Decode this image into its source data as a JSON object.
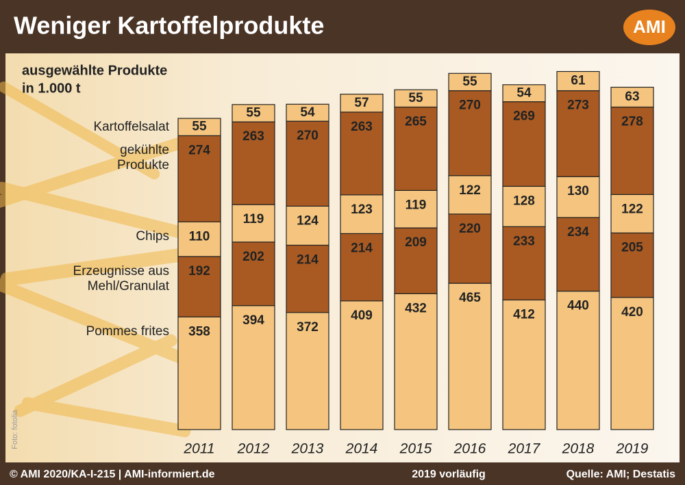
{
  "chart_data": {
    "type": "stacked-bar",
    "title": "Weniger Kartoffelprodukte",
    "subtitle": [
      "ausgewählte Produkte",
      "in 1.000 t"
    ],
    "logo": "AMI",
    "categories": [
      "2011",
      "2012",
      "2013",
      "2014",
      "2015",
      "2016",
      "2017",
      "2018",
      "2019"
    ],
    "series": [
      {
        "name": "Kartoffelsalat",
        "color": "#f5c57f",
        "values": [
          55,
          55,
          54,
          57,
          55,
          55,
          54,
          61,
          63
        ]
      },
      {
        "name": "gekühlte Produkte",
        "color": "#a85a22",
        "values": [
          274,
          263,
          270,
          263,
          265,
          270,
          269,
          273,
          278
        ]
      },
      {
        "name": "Chips",
        "color": "#f5c57f",
        "values": [
          110,
          119,
          124,
          123,
          119,
          122,
          128,
          130,
          122
        ]
      },
      {
        "name": "Erzeugnisse aus Mehl/Granulat",
        "color": "#a85a22",
        "values": [
          192,
          202,
          214,
          214,
          209,
          220,
          233,
          234,
          205
        ]
      },
      {
        "name": "Pommes frites",
        "color": "#f5c57f",
        "values": [
          358,
          394,
          372,
          409,
          432,
          465,
          412,
          440,
          420
        ]
      }
    ],
    "photo_credit": "Foto: fotolia",
    "footer": {
      "left": "© AMI 2020/KA-I-215 | AMI-informiert.de",
      "center": "2019 vorläufig",
      "right": "Quelle: AMI; Destatis"
    }
  }
}
